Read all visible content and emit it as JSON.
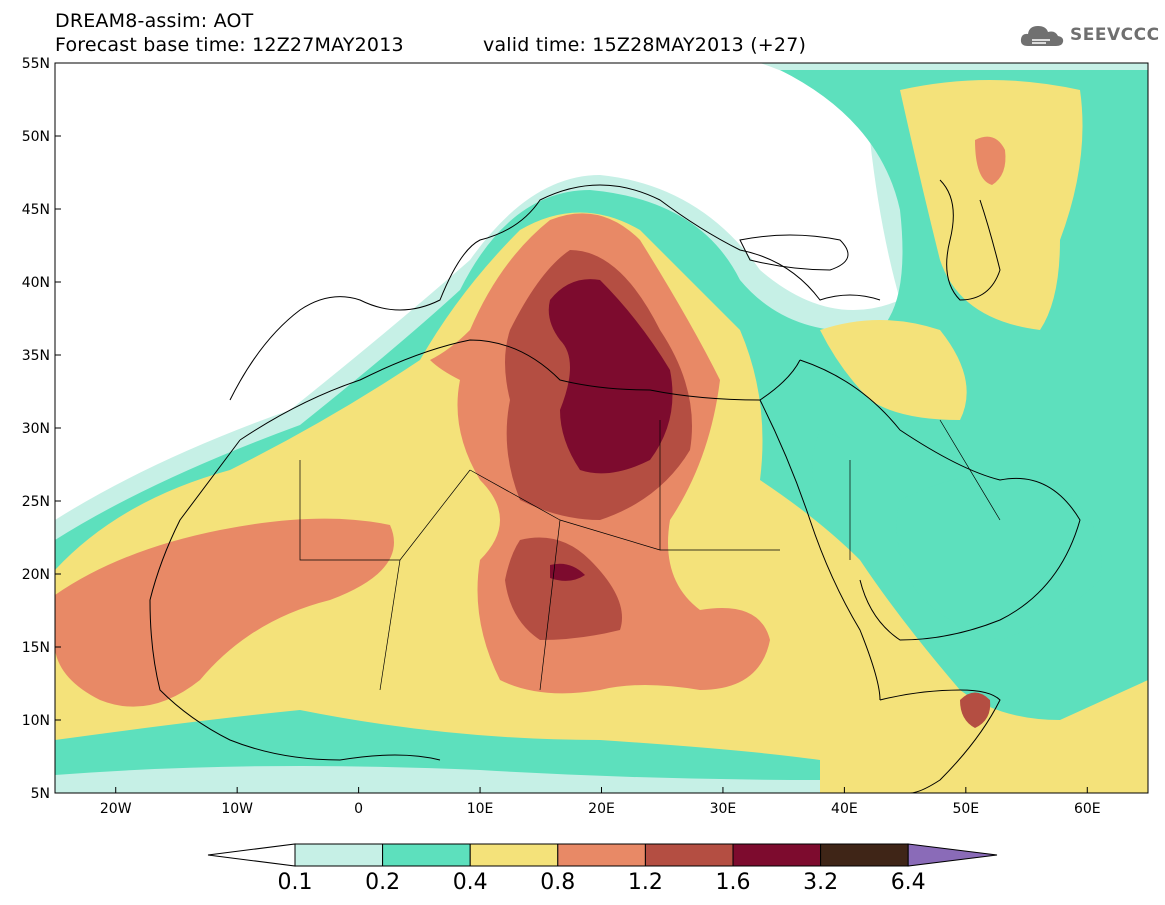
{
  "header": {
    "title_line1": "DREAM8-assim: AOT",
    "title_line2_left": "Forecast base time: 12Z27MAY2013",
    "title_line2_right": "valid time: 15Z28MAY2013 (+27)"
  },
  "logo": {
    "text": "SEEVCCC",
    "icon": "cloud-icon"
  },
  "axes": {
    "lat_labels": [
      "55N",
      "50N",
      "45N",
      "40N",
      "35N",
      "30N",
      "25N",
      "20N",
      "15N",
      "10N",
      "5N"
    ],
    "lon_labels": [
      "20W",
      "10W",
      "0",
      "10E",
      "20E",
      "30E",
      "40E",
      "50E",
      "60E"
    ],
    "lat_range": [
      5,
      55
    ],
    "lon_range": [
      -25,
      65
    ]
  },
  "colorbar": {
    "labels": [
      "0.1",
      "0.2",
      "0.4",
      "0.8",
      "1.2",
      "1.6",
      "3.2",
      "6.4"
    ],
    "colors": [
      "#ffffff",
      "#c6f0e6",
      "#5de0bd",
      "#f4e27a",
      "#e88966",
      "#b44e42",
      "#7d0b2e",
      "#3f2517",
      "#8a6bb8"
    ]
  }
}
